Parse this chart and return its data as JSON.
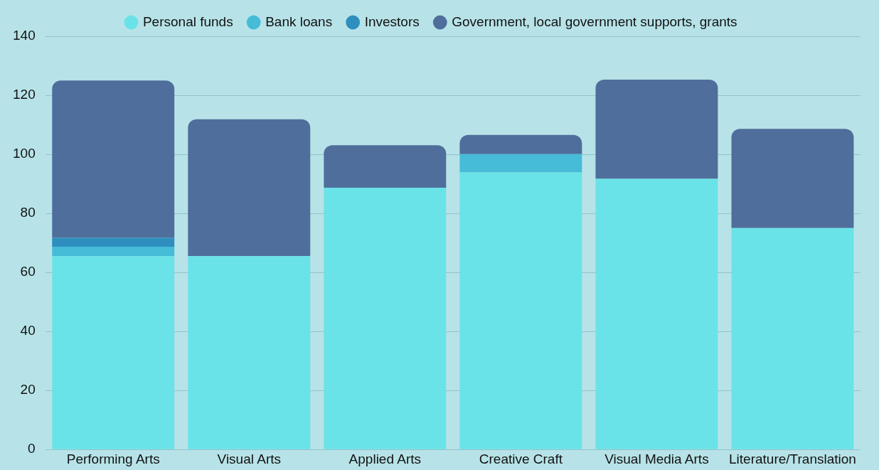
{
  "chart_data": {
    "type": "bar",
    "stacked": true,
    "categories": [
      "Performing Arts",
      "Visual Arts",
      "Applied Arts",
      "Creative Craft",
      "Visual Media Arts",
      "Literature/Translation"
    ],
    "series": [
      {
        "name": "Personal funds",
        "color": "#6ae3e8",
        "values": [
          65.5,
          65.5,
          88.7,
          93.9,
          91.7,
          75
        ]
      },
      {
        "name": "Bank loans",
        "color": "#46bcd8",
        "values": [
          3.2,
          0,
          0,
          6.2,
          0,
          0
        ]
      },
      {
        "name": "Investors",
        "color": "#2e8fbf",
        "values": [
          3,
          0,
          0,
          0,
          0,
          0
        ]
      },
      {
        "name": "Government, local government supports, grants",
        "color": "#4f6e9b",
        "values": [
          53.3,
          46.4,
          14.4,
          6.5,
          33.6,
          33.6
        ]
      }
    ],
    "ylim": [
      0,
      140
    ],
    "yticks": [
      0,
      20,
      40,
      60,
      80,
      100,
      120,
      140
    ],
    "grid": "y",
    "legend": "top"
  }
}
